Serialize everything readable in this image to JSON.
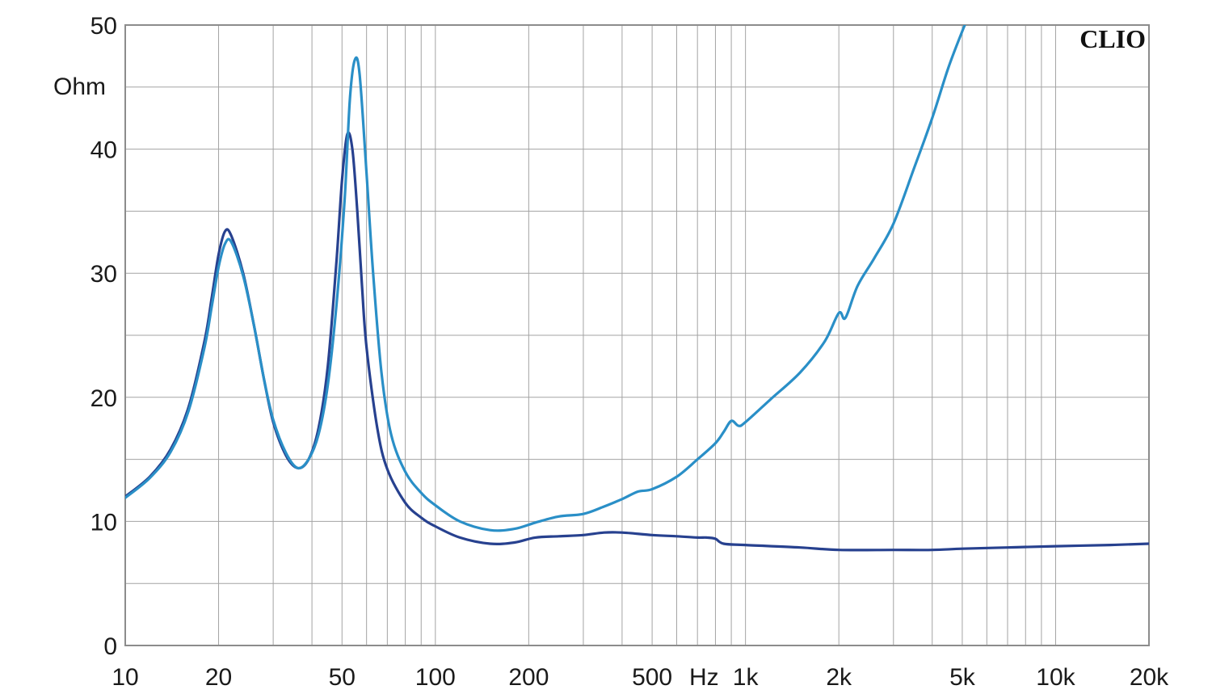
{
  "brand": "CLIO",
  "chart_data": {
    "type": "line",
    "title": "",
    "xlabel": "Hz",
    "ylabel": "Ohm",
    "xscale": "log",
    "xlim": [
      10,
      20000
    ],
    "ylim": [
      0,
      50
    ],
    "grid": true,
    "x_ticks": [
      {
        "value": 10,
        "label": "10"
      },
      {
        "value": 20,
        "label": "20"
      },
      {
        "value": 50,
        "label": "50"
      },
      {
        "value": 100,
        "label": "100"
      },
      {
        "value": 200,
        "label": "200"
      },
      {
        "value": 500,
        "label": "500"
      },
      {
        "value": 1000,
        "label": "1k"
      },
      {
        "value": 2000,
        "label": "2k"
      },
      {
        "value": 5000,
        "label": "5k"
      },
      {
        "value": 10000,
        "label": "10k"
      },
      {
        "value": 20000,
        "label": "20k"
      }
    ],
    "y_ticks": [
      {
        "value": 0,
        "label": "0"
      },
      {
        "value": 10,
        "label": "10"
      },
      {
        "value": 20,
        "label": "20"
      },
      {
        "value": 30,
        "label": "30"
      },
      {
        "value": 40,
        "label": "40"
      },
      {
        "value": 50,
        "label": "50"
      }
    ],
    "series": [
      {
        "color": "#27418f",
        "points": [
          [
            10,
            12.0
          ],
          [
            12,
            13.6
          ],
          [
            14,
            15.8
          ],
          [
            16,
            19.2
          ],
          [
            18,
            24.5
          ],
          [
            19,
            28.0
          ],
          [
            20,
            31.5
          ],
          [
            21,
            33.4
          ],
          [
            22,
            33.0
          ],
          [
            24,
            30.0
          ],
          [
            26,
            25.8
          ],
          [
            28,
            21.5
          ],
          [
            30,
            18.0
          ],
          [
            33,
            15.3
          ],
          [
            36,
            14.3
          ],
          [
            39,
            15.0
          ],
          [
            42,
            17.5
          ],
          [
            45,
            22.5
          ],
          [
            48,
            31.0
          ],
          [
            50,
            37.5
          ],
          [
            52,
            41.2
          ],
          [
            54,
            40.0
          ],
          [
            56,
            35.0
          ],
          [
            58,
            29.0
          ],
          [
            60,
            24.0
          ],
          [
            65,
            17.5
          ],
          [
            70,
            14.2
          ],
          [
            80,
            11.5
          ],
          [
            90,
            10.3
          ],
          [
            100,
            9.6
          ],
          [
            120,
            8.7
          ],
          [
            150,
            8.2
          ],
          [
            180,
            8.3
          ],
          [
            210,
            8.7
          ],
          [
            250,
            8.8
          ],
          [
            300,
            8.9
          ],
          [
            350,
            9.1
          ],
          [
            400,
            9.1
          ],
          [
            500,
            8.9
          ],
          [
            600,
            8.8
          ],
          [
            700,
            8.7
          ],
          [
            750,
            8.7
          ],
          [
            800,
            8.6
          ],
          [
            850,
            8.2
          ],
          [
            1000,
            8.1
          ],
          [
            1500,
            7.9
          ],
          [
            2000,
            7.7
          ],
          [
            3000,
            7.7
          ],
          [
            4000,
            7.7
          ],
          [
            5000,
            7.8
          ],
          [
            7000,
            7.9
          ],
          [
            10000,
            8.0
          ],
          [
            15000,
            8.1
          ],
          [
            20000,
            8.2
          ]
        ]
      },
      {
        "color": "#2a8fc7",
        "points": [
          [
            10,
            11.9
          ],
          [
            12,
            13.5
          ],
          [
            14,
            15.6
          ],
          [
            16,
            18.9
          ],
          [
            18,
            24.0
          ],
          [
            19,
            27.3
          ],
          [
            20,
            30.5
          ],
          [
            21,
            32.4
          ],
          [
            22,
            32.5
          ],
          [
            24,
            29.8
          ],
          [
            26,
            25.8
          ],
          [
            28,
            21.5
          ],
          [
            30,
            18.2
          ],
          [
            33,
            15.5
          ],
          [
            36,
            14.3
          ],
          [
            39,
            15.0
          ],
          [
            42,
            17.0
          ],
          [
            45,
            21.0
          ],
          [
            48,
            27.5
          ],
          [
            51,
            36.0
          ],
          [
            53,
            44.0
          ],
          [
            55,
            47.2
          ],
          [
            57,
            46.0
          ],
          [
            60,
            38.0
          ],
          [
            63,
            30.0
          ],
          [
            67,
            22.0
          ],
          [
            72,
            17.0
          ],
          [
            80,
            14.0
          ],
          [
            90,
            12.3
          ],
          [
            100,
            11.3
          ],
          [
            120,
            10.0
          ],
          [
            150,
            9.3
          ],
          [
            180,
            9.4
          ],
          [
            210,
            9.9
          ],
          [
            250,
            10.4
          ],
          [
            300,
            10.6
          ],
          [
            350,
            11.2
          ],
          [
            400,
            11.8
          ],
          [
            450,
            12.4
          ],
          [
            500,
            12.6
          ],
          [
            600,
            13.6
          ],
          [
            700,
            15.0
          ],
          [
            800,
            16.3
          ],
          [
            850,
            17.2
          ],
          [
            900,
            18.1
          ],
          [
            950,
            17.7
          ],
          [
            1000,
            18.0
          ],
          [
            1200,
            19.8
          ],
          [
            1500,
            22.0
          ],
          [
            1800,
            24.5
          ],
          [
            2000,
            26.8
          ],
          [
            2100,
            26.4
          ],
          [
            2300,
            29.0
          ],
          [
            2600,
            31.2
          ],
          [
            3000,
            34.0
          ],
          [
            3500,
            38.5
          ],
          [
            4000,
            42.5
          ],
          [
            4500,
            46.5
          ],
          [
            5000,
            49.5
          ],
          [
            5200,
            50.5
          ]
        ]
      }
    ]
  }
}
